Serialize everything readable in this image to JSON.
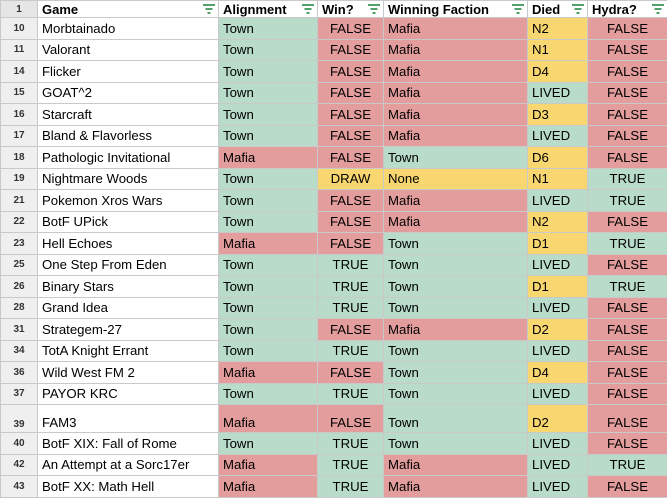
{
  "header": {
    "row_number": "1",
    "columns": [
      "Game",
      "Alignment",
      "Win?",
      "Winning Faction",
      "Died",
      "Hydra?"
    ]
  },
  "rows": [
    {
      "n": "10",
      "game": "Morbtainado",
      "align": "Town",
      "win": "FALSE",
      "faction": "Mafia",
      "died": "N2",
      "hydra": "FALSE"
    },
    {
      "n": "11",
      "game": "Valorant",
      "align": "Town",
      "win": "FALSE",
      "faction": "Mafia",
      "died": "N1",
      "hydra": "FALSE"
    },
    {
      "n": "14",
      "game": "Flicker",
      "align": "Town",
      "win": "FALSE",
      "faction": "Mafia",
      "died": "D4",
      "hydra": "FALSE"
    },
    {
      "n": "15",
      "game": "GOAT^2",
      "align": "Town",
      "win": "FALSE",
      "faction": "Mafia",
      "died": "LIVED",
      "hydra": "FALSE"
    },
    {
      "n": "16",
      "game": "Starcraft",
      "align": "Town",
      "win": "FALSE",
      "faction": "Mafia",
      "died": "D3",
      "hydra": "FALSE"
    },
    {
      "n": "17",
      "game": "Bland & Flavorless",
      "align": "Town",
      "win": "FALSE",
      "faction": "Mafia",
      "died": "LIVED",
      "hydra": "FALSE"
    },
    {
      "n": "18",
      "game": "Pathologic Invitational",
      "align": "Mafia",
      "win": "FALSE",
      "faction": "Town",
      "died": "D6",
      "hydra": "FALSE"
    },
    {
      "n": "19",
      "game": "Nightmare Woods",
      "align": "Town",
      "win": "DRAW",
      "faction": "None",
      "died": "N1",
      "hydra": "TRUE"
    },
    {
      "n": "21",
      "game": "Pokemon Xros Wars",
      "align": "Town",
      "win": "FALSE",
      "faction": "Mafia",
      "died": "LIVED",
      "hydra": "TRUE"
    },
    {
      "n": "22",
      "game": "BotF UPick",
      "align": "Town",
      "win": "FALSE",
      "faction": "Mafia",
      "died": "N2",
      "hydra": "FALSE"
    },
    {
      "n": "23",
      "game": "Hell Echoes",
      "align": "Mafia",
      "win": "FALSE",
      "faction": "Town",
      "died": "D1",
      "hydra": "TRUE"
    },
    {
      "n": "25",
      "game": "One Step From Eden",
      "align": "Town",
      "win": "TRUE",
      "faction": "Town",
      "died": "LIVED",
      "hydra": "FALSE"
    },
    {
      "n": "26",
      "game": "Binary Stars",
      "align": "Town",
      "win": "TRUE",
      "faction": "Town",
      "died": "D1",
      "hydra": "TRUE"
    },
    {
      "n": "28",
      "game": "Grand Idea",
      "align": "Town",
      "win": "TRUE",
      "faction": "Town",
      "died": "LIVED",
      "hydra": "FALSE"
    },
    {
      "n": "31",
      "game": "Strategem-27",
      "align": "Town",
      "win": "FALSE",
      "faction": "Mafia",
      "died": "D2",
      "hydra": "FALSE"
    },
    {
      "n": "34",
      "game": "TotA Knight Errant",
      "align": "Town",
      "win": "TRUE",
      "faction": "Town",
      "died": "LIVED",
      "hydra": "FALSE"
    },
    {
      "n": "36",
      "game": "Wild West FM 2",
      "align": "Mafia",
      "win": "FALSE",
      "faction": "Town",
      "died": "D4",
      "hydra": "FALSE"
    },
    {
      "n": "37",
      "game": "PAYOR KRC",
      "align": "Town",
      "win": "TRUE",
      "faction": "Town",
      "died": "LIVED",
      "hydra": "FALSE"
    },
    {
      "n": "39",
      "game": "FAM3",
      "align": "Mafia",
      "win": "FALSE",
      "faction": "Town",
      "died": "D2",
      "hydra": "FALSE",
      "tall": true
    },
    {
      "n": "40",
      "game": "BotF XIX: Fall of Rome",
      "align": "Town",
      "win": "TRUE",
      "faction": "Town",
      "died": "LIVED",
      "hydra": "FALSE"
    },
    {
      "n": "42",
      "game": "An Attempt at a Sorc17er",
      "align": "Mafia",
      "win": "TRUE",
      "faction": "Mafia",
      "died": "LIVED",
      "hydra": "TRUE"
    },
    {
      "n": "43",
      "game": "BotF XX: Math Hell",
      "align": "Mafia",
      "win": "TRUE",
      "faction": "Mafia",
      "died": "LIVED",
      "hydra": "FALSE"
    }
  ],
  "colors": {
    "green": "#b8dcc9",
    "red": "#e39d9c",
    "yellow": "#f8d771",
    "filter_icon": "#188038"
  }
}
